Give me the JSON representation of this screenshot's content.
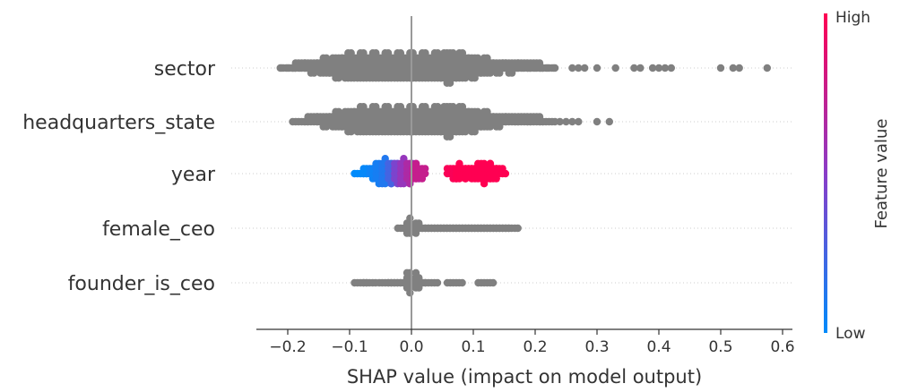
{
  "chart_data": {
    "type": "scatter",
    "subtype": "shap-beeswarm",
    "title": "",
    "xlabel": "SHAP value (impact on model output)",
    "xlim": [
      -0.25,
      0.62
    ],
    "xticks": [
      -0.2,
      -0.1,
      0.0,
      0.1,
      0.2,
      0.3,
      0.4,
      0.5,
      0.6
    ],
    "xtick_labels": [
      "−0.2",
      "−0.1",
      "0.0",
      "0.1",
      "0.2",
      "0.3",
      "0.4",
      "0.5",
      "0.6"
    ],
    "features": [
      "sector",
      "headquarters_state",
      "year",
      "female_ceo",
      "founder_is_ceo"
    ],
    "default_point_color": "#808080",
    "colorbar": {
      "title": "Feature value",
      "high_label": "High",
      "low_label": "Low",
      "high_color": "#ff0052",
      "mid_color": "#8a3cc8",
      "low_color": "#008bfb"
    },
    "series": [
      {
        "feature": "sector",
        "colored": false,
        "points": [
          [
            -0.21,
            0
          ],
          [
            -0.2,
            0
          ],
          [
            -0.19,
            0
          ],
          [
            -0.18,
            0
          ],
          [
            -0.17,
            0
          ],
          [
            -0.16,
            0
          ],
          [
            -0.15,
            0
          ],
          [
            -0.14,
            0
          ],
          [
            -0.13,
            0
          ],
          [
            -0.12,
            0
          ],
          [
            -0.11,
            0
          ],
          [
            -0.1,
            0
          ],
          [
            -0.09,
            0
          ],
          [
            -0.08,
            0
          ],
          [
            -0.07,
            0
          ],
          [
            -0.06,
            0
          ],
          [
            -0.05,
            0
          ],
          [
            -0.04,
            0
          ],
          [
            -0.03,
            0
          ],
          [
            -0.02,
            0
          ],
          [
            -0.01,
            0
          ],
          [
            0.0,
            0
          ],
          [
            0.01,
            0
          ],
          [
            0.02,
            0
          ],
          [
            0.03,
            0
          ],
          [
            0.04,
            0
          ],
          [
            0.05,
            0
          ],
          [
            0.06,
            0
          ],
          [
            0.07,
            0
          ],
          [
            0.08,
            0
          ],
          [
            0.09,
            0
          ],
          [
            0.1,
            0
          ],
          [
            0.11,
            0
          ],
          [
            0.12,
            0
          ],
          [
            0.13,
            0
          ],
          [
            0.14,
            0
          ],
          [
            0.15,
            0
          ],
          [
            0.16,
            0
          ],
          [
            0.17,
            0
          ],
          [
            0.18,
            0
          ],
          [
            0.19,
            0
          ],
          [
            0.2,
            0
          ],
          [
            0.21,
            0
          ],
          [
            0.22,
            0
          ],
          [
            0.23,
            0
          ],
          [
            0.26,
            0
          ],
          [
            0.27,
            0
          ],
          [
            0.28,
            0
          ],
          [
            0.3,
            0
          ],
          [
            0.33,
            0
          ],
          [
            0.36,
            0
          ],
          [
            0.37,
            0
          ],
          [
            0.39,
            0
          ],
          [
            0.4,
            0
          ],
          [
            0.41,
            0
          ],
          [
            0.42,
            0
          ],
          [
            0.5,
            0
          ],
          [
            0.52,
            0
          ],
          [
            0.53,
            0
          ],
          [
            0.575,
            0
          ]
        ],
        "density": [
          [
            -0.2,
            1
          ],
          [
            -0.18,
            2
          ],
          [
            -0.16,
            3
          ],
          [
            -0.14,
            4
          ],
          [
            -0.12,
            5
          ],
          [
            -0.1,
            6
          ],
          [
            -0.08,
            6
          ],
          [
            -0.06,
            6
          ],
          [
            -0.04,
            6
          ],
          [
            -0.02,
            6
          ],
          [
            0.0,
            6
          ],
          [
            0.02,
            6
          ],
          [
            0.04,
            7
          ],
          [
            0.06,
            8
          ],
          [
            0.08,
            7
          ],
          [
            0.1,
            5
          ],
          [
            0.12,
            4
          ],
          [
            0.14,
            3
          ],
          [
            0.16,
            3
          ],
          [
            0.18,
            2
          ],
          [
            0.2,
            2
          ],
          [
            0.22,
            1
          ]
        ]
      },
      {
        "feature": "headquarters_state",
        "colored": false,
        "density": [
          [
            -0.18,
            1
          ],
          [
            -0.16,
            2
          ],
          [
            -0.14,
            3
          ],
          [
            -0.12,
            4
          ],
          [
            -0.1,
            5
          ],
          [
            -0.08,
            6
          ],
          [
            -0.06,
            7
          ],
          [
            -0.04,
            7
          ],
          [
            -0.02,
            6
          ],
          [
            0.0,
            6
          ],
          [
            0.02,
            7
          ],
          [
            0.04,
            7
          ],
          [
            0.06,
            8
          ],
          [
            0.08,
            6
          ],
          [
            0.1,
            5
          ],
          [
            0.12,
            4
          ],
          [
            0.14,
            3
          ],
          [
            0.16,
            2
          ],
          [
            0.18,
            2
          ],
          [
            0.2,
            2
          ],
          [
            0.22,
            1
          ]
        ],
        "points": [
          [
            0.24,
            0
          ],
          [
            0.25,
            0
          ],
          [
            0.26,
            0
          ],
          [
            0.27,
            0
          ],
          [
            0.3,
            0
          ],
          [
            0.32,
            0
          ]
        ]
      },
      {
        "feature": "year",
        "colored": true,
        "density": [
          [
            -0.08,
            1,
            0.0
          ],
          [
            -0.07,
            2,
            0.02
          ],
          [
            -0.06,
            3,
            0.05
          ],
          [
            -0.05,
            5,
            0.08
          ],
          [
            -0.04,
            6,
            0.12
          ],
          [
            -0.03,
            5,
            0.25
          ],
          [
            -0.02,
            5,
            0.45
          ],
          [
            -0.01,
            6,
            0.55
          ],
          [
            0.0,
            5,
            0.65
          ],
          [
            0.01,
            4,
            0.75
          ],
          [
            0.07,
            3,
            0.98
          ],
          [
            0.08,
            4,
            1.0
          ],
          [
            0.09,
            3,
            1.0
          ],
          [
            0.1,
            3,
            1.0
          ],
          [
            0.11,
            4,
            1.0
          ],
          [
            0.12,
            5,
            1.0
          ],
          [
            0.13,
            4,
            1.0
          ],
          [
            0.14,
            2,
            1.0
          ]
        ]
      },
      {
        "feature": "female_ceo",
        "colored": false,
        "density": [
          [
            -0.01,
            1
          ],
          [
            0.0,
            4
          ],
          [
            0.01,
            1
          ],
          [
            0.02,
            1
          ],
          [
            0.03,
            1
          ],
          [
            0.04,
            1
          ],
          [
            0.05,
            1
          ],
          [
            0.06,
            1
          ],
          [
            0.07,
            1
          ],
          [
            0.08,
            1
          ],
          [
            0.09,
            1
          ],
          [
            0.1,
            1
          ],
          [
            0.11,
            1
          ],
          [
            0.12,
            1
          ],
          [
            0.13,
            1
          ],
          [
            0.14,
            1
          ],
          [
            0.15,
            1
          ],
          [
            0.16,
            1
          ]
        ]
      },
      {
        "feature": "founder_is_ceo",
        "colored": false,
        "density": [
          [
            -0.08,
            1
          ],
          [
            -0.07,
            1
          ],
          [
            -0.04,
            1
          ],
          [
            -0.03,
            1
          ],
          [
            -0.02,
            1
          ],
          [
            -0.01,
            1
          ],
          [
            0.0,
            5
          ],
          [
            0.01,
            1
          ],
          [
            0.03,
            1
          ],
          [
            0.07,
            1
          ],
          [
            0.12,
            1
          ]
        ]
      }
    ]
  }
}
